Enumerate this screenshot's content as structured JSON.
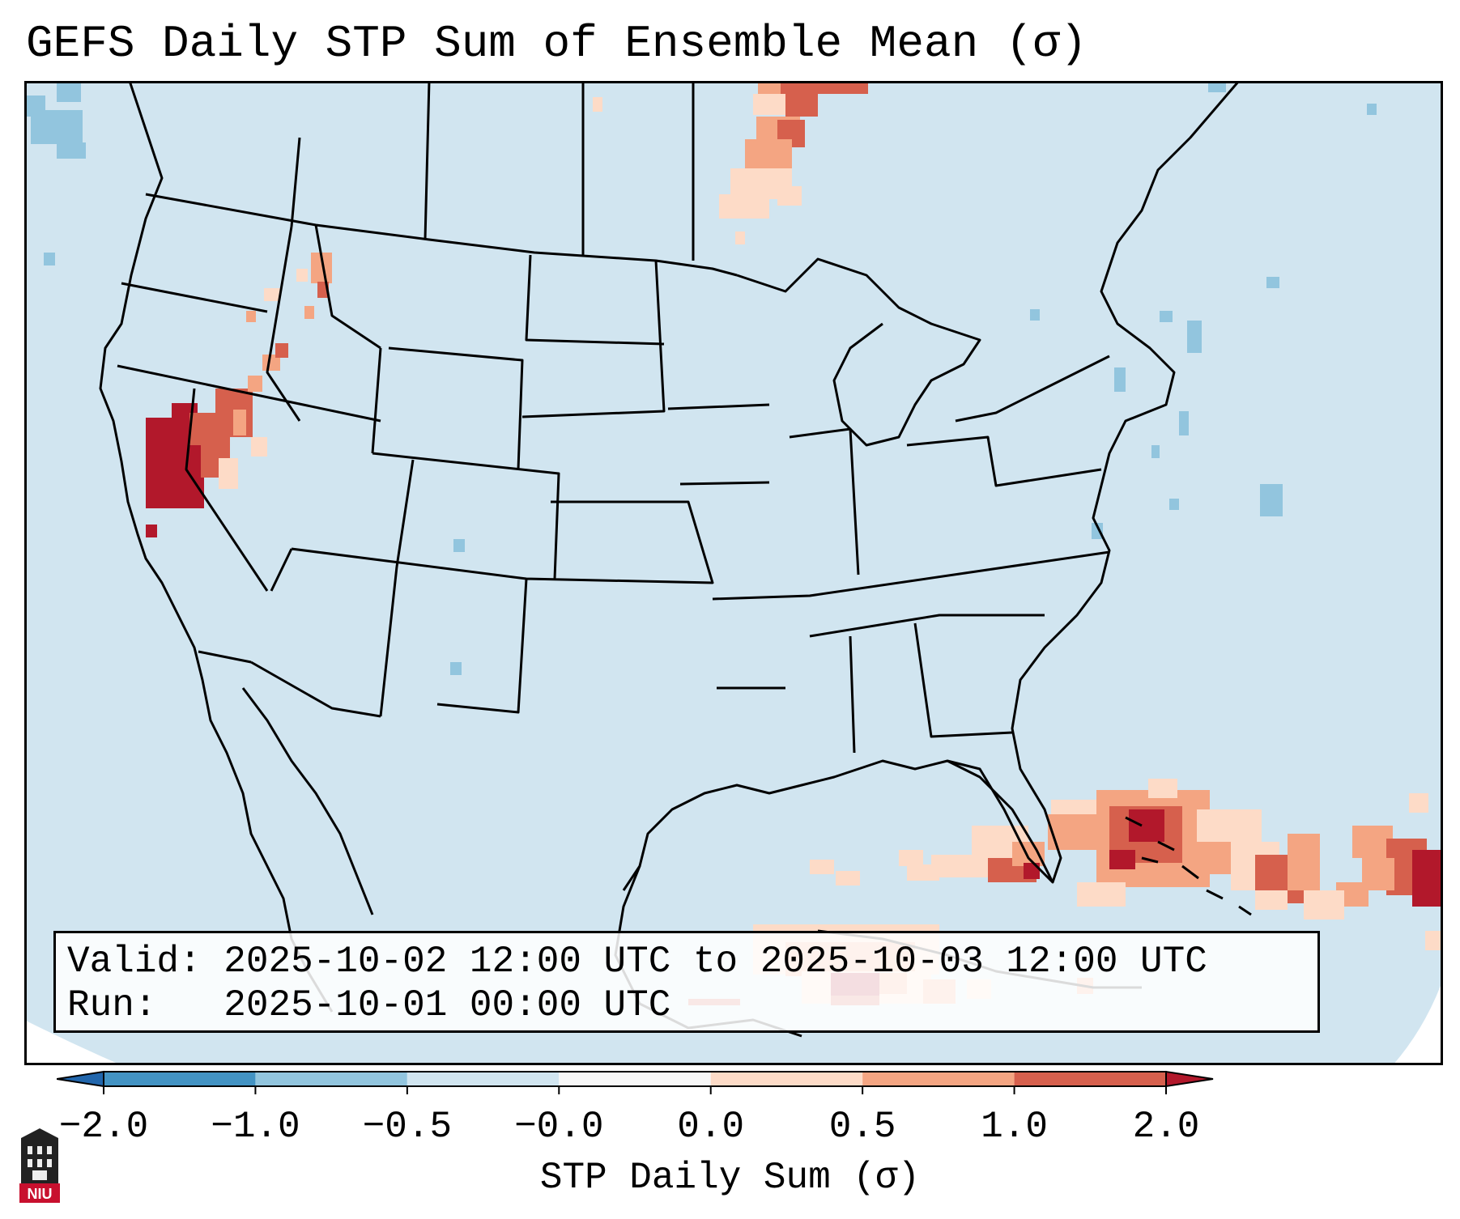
{
  "title": "GEFS Daily STP Sum of Ensemble Mean (σ)",
  "info": {
    "valid_label": "Valid:",
    "valid_value": "2025-10-02 12:00 UTC to 2025-10-03 12:00 UTC",
    "run_label": "Run:",
    "run_value": "2025-10-01 00:00 UTC"
  },
  "colorbar": {
    "label": "STP Daily Sum (σ)",
    "ticks": [
      "−2.0",
      "−1.0",
      "−0.5",
      "−0.0",
      "0.0",
      "0.5",
      "1.0",
      "2.0"
    ],
    "colors": [
      "#2166ac",
      "#4393c3",
      "#92c5de",
      "#d1e5f0",
      "#f7f7f7",
      "#fddbc7",
      "#f4a582",
      "#d6604d",
      "#b2182b"
    ],
    "background_color": "#d1e5f0"
  },
  "logo": {
    "text": "NIU",
    "color": "#c8102e"
  },
  "regions": [
    {
      "name": "northern-california-nevada",
      "category": "≥2.0"
    },
    {
      "name": "idaho-panhandle",
      "category": "0.5–1.0"
    },
    {
      "name": "lake-of-the-woods-north",
      "category": "0.5–2.0"
    },
    {
      "name": "florida-bahamas",
      "category": "≥2.0"
    },
    {
      "name": "cuba",
      "category": "0.0–2.0"
    },
    {
      "name": "nova-scotia-south",
      "category": "−1.0"
    },
    {
      "name": "pacific-northwest-offshore",
      "category": "−1.0"
    }
  ]
}
